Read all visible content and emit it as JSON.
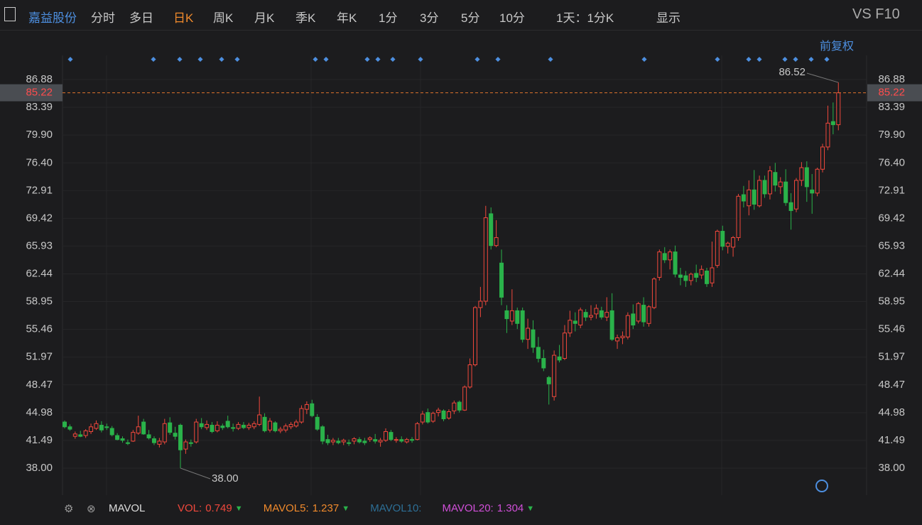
{
  "toolbar": {
    "stock_name": "嘉益股份",
    "periods": [
      "分时",
      "多日",
      "日K",
      "周K",
      "月K",
      "季K",
      "年K",
      "1分",
      "3分",
      "5分",
      "10分"
    ],
    "range_select": "1天：1分K",
    "display": "显示",
    "tools": "VS F10"
  },
  "adjust": "前复权",
  "chart_data": {
    "type": "candlestick",
    "up_color": "#f0483c",
    "down_color": "#2ab24a",
    "ylim": [
      34.6,
      89.92
    ],
    "yticks": [
      {
        "value": 38,
        "label": "38.00"
      },
      41.49,
      44.98,
      48.47,
      51.97,
      55.46,
      58.95,
      62.44,
      65.93,
      69.42,
      72.91,
      {
        "value": 76.4,
        "label": "76.40"
      },
      {
        "value": 79.9,
        "label": "79.90"
      },
      83.39,
      86.88
    ],
    "last_price": 85.22,
    "annotations": {
      "high": 86.52,
      "low": {
        "value": 38,
        "label": "38.00"
      }
    },
    "values": [
      [
        43.8,
        44.0,
        43.0,
        43.2
      ],
      [
        43.2,
        43.5,
        42.7,
        42.9
      ],
      [
        42.0,
        42.6,
        41.7,
        42.3
      ],
      [
        42.2,
        42.7,
        41.9,
        42.0
      ],
      [
        42.1,
        42.9,
        41.8,
        42.7
      ],
      [
        42.6,
        43.6,
        42.3,
        43.2
      ],
      [
        43.0,
        44.0,
        42.8,
        43.6
      ],
      [
        43.4,
        43.9,
        42.5,
        42.8
      ],
      [
        43.2,
        43.6,
        42.8,
        43.1
      ],
      [
        43.0,
        43.3,
        42.0,
        42.2
      ],
      [
        42.1,
        42.4,
        41.5,
        41.6
      ],
      [
        41.7,
        42.0,
        41.2,
        41.5
      ],
      [
        41.2,
        41.6,
        40.9,
        41.1
      ],
      [
        41.4,
        42.8,
        41.3,
        42.5
      ],
      [
        42.4,
        44.6,
        42.2,
        43.2
      ],
      [
        43.8,
        44.2,
        42.2,
        42.3
      ],
      [
        42.2,
        42.8,
        41.6,
        41.8
      ],
      [
        41.7,
        42.0,
        40.9,
        41.2
      ],
      [
        41.0,
        41.8,
        40.6,
        41.4
      ],
      [
        41.3,
        44.2,
        41.0,
        43.6
      ],
      [
        43.7,
        44.4,
        42.2,
        42.5
      ],
      [
        42.4,
        43.2,
        41.6,
        42.0
      ],
      [
        43.4,
        43.6,
        38.0,
        40.3
      ],
      [
        40.4,
        41.6,
        39.8,
        41.3
      ],
      [
        41.2,
        41.6,
        40.7,
        41.1
      ],
      [
        41.3,
        44.2,
        41.1,
        43.8
      ],
      [
        43.6,
        44.3,
        42.9,
        43.2
      ],
      [
        43.1,
        44.0,
        42.8,
        43.5
      ],
      [
        43.4,
        43.8,
        42.4,
        42.6
      ],
      [
        42.7,
        43.9,
        42.5,
        43.4
      ],
      [
        43.3,
        43.6,
        42.8,
        43.1
      ],
      [
        43.9,
        44.6,
        43.0,
        43.2
      ],
      [
        43.1,
        43.6,
        42.6,
        43.0
      ],
      [
        43.0,
        43.8,
        42.8,
        43.5
      ],
      [
        43.4,
        43.8,
        42.9,
        43.1
      ],
      [
        43.1,
        43.7,
        42.8,
        43.4
      ],
      [
        43.2,
        43.9,
        42.9,
        43.6
      ],
      [
        43.5,
        47.0,
        43.3,
        44.7
      ],
      [
        44.4,
        44.9,
        42.5,
        42.7
      ],
      [
        42.8,
        44.3,
        42.5,
        43.9
      ],
      [
        43.7,
        43.9,
        42.5,
        42.7
      ],
      [
        42.7,
        43.2,
        42.4,
        42.9
      ],
      [
        42.8,
        43.6,
        42.5,
        43.3
      ],
      [
        43.2,
        43.8,
        42.9,
        43.5
      ],
      [
        43.3,
        44.1,
        43.1,
        43.8
      ],
      [
        43.8,
        45.9,
        43.6,
        45.5
      ],
      [
        45.4,
        46.4,
        44.8,
        46.0
      ],
      [
        46.1,
        46.6,
        44.4,
        44.6
      ],
      [
        44.4,
        44.8,
        42.7,
        42.9
      ],
      [
        43.2,
        43.4,
        41.0,
        41.4
      ],
      [
        41.6,
        42.2,
        40.9,
        41.2
      ],
      [
        41.3,
        41.8,
        40.9,
        41.5
      ],
      [
        41.4,
        41.8,
        41.0,
        41.2
      ],
      [
        41.3,
        41.7,
        40.9,
        41.5
      ],
      [
        41.2,
        41.6,
        40.8,
        41.1
      ],
      [
        41.4,
        41.9,
        41.0,
        41.7
      ],
      [
        41.6,
        41.9,
        41.1,
        41.3
      ],
      [
        41.4,
        41.8,
        40.9,
        41.2
      ],
      [
        41.6,
        42.0,
        41.3,
        41.8
      ],
      [
        41.6,
        42.3,
        41.1,
        41.4
      ],
      [
        41.3,
        41.8,
        40.7,
        41.5
      ],
      [
        41.5,
        43.0,
        41.3,
        42.6
      ],
      [
        42.5,
        42.8,
        41.4,
        41.6
      ],
      [
        41.5,
        41.9,
        41.2,
        41.6
      ],
      [
        41.6,
        42.0,
        41.2,
        41.4
      ],
      [
        41.3,
        41.8,
        41.1,
        41.6
      ],
      [
        41.6,
        41.9,
        41.2,
        41.5
      ],
      [
        41.6,
        43.8,
        41.5,
        43.6
      ],
      [
        43.8,
        45.2,
        43.5,
        44.8
      ],
      [
        45.0,
        45.5,
        43.6,
        43.8
      ],
      [
        43.9,
        45.1,
        43.7,
        44.9
      ],
      [
        45.0,
        45.6,
        44.5,
        45.3
      ],
      [
        45.2,
        45.4,
        43.9,
        44.2
      ],
      [
        44.3,
        45.4,
        44.1,
        45.1
      ],
      [
        45.2,
        46.5,
        44.8,
        46.2
      ],
      [
        46.3,
        46.5,
        45.0,
        45.3
      ],
      [
        45.3,
        48.4,
        45.2,
        48.2
      ],
      [
        48.2,
        51.8,
        48.0,
        51.0
      ],
      [
        51.0,
        58.4,
        50.8,
        58.2
      ],
      [
        58.2,
        60.8,
        57.0,
        59.0
      ],
      [
        59.0,
        71.0,
        58.5,
        69.5
      ],
      [
        70.0,
        70.8,
        65.5,
        66.0
      ],
      [
        66.0,
        69.2,
        65.8,
        67.0
      ],
      [
        63.8,
        65.5,
        58.5,
        59.5
      ],
      [
        57.8,
        58.5,
        55.0,
        56.8
      ],
      [
        56.5,
        60.5,
        56.0,
        57.8
      ],
      [
        57.8,
        58.2,
        55.5,
        56.2
      ],
      [
        57.8,
        58.2,
        53.8,
        54.2
      ],
      [
        54.2,
        56.8,
        53.0,
        55.6
      ],
      [
        55.4,
        56.6,
        52.5,
        53.2
      ],
      [
        53.2,
        54.5,
        51.3,
        51.8
      ],
      [
        51.8,
        52.9,
        50.2,
        50.6
      ],
      [
        49.4,
        49.6,
        46.0,
        48.6
      ],
      [
        47.0,
        52.8,
        46.5,
        52.2
      ],
      [
        52.0,
        53.5,
        51.3,
        51.6
      ],
      [
        51.8,
        56.0,
        51.6,
        55.0
      ],
      [
        55.0,
        57.8,
        54.5,
        56.6
      ],
      [
        56.5,
        57.6,
        55.2,
        56.2
      ],
      [
        56.0,
        58.2,
        55.6,
        57.9
      ],
      [
        57.6,
        58.0,
        56.5,
        57.0
      ],
      [
        57.0,
        58.5,
        56.6,
        57.2
      ],
      [
        57.4,
        58.6,
        56.8,
        58.1
      ],
      [
        57.8,
        58.3,
        56.7,
        57.0
      ],
      [
        57.0,
        59.5,
        56.5,
        57.6
      ],
      [
        57.8,
        60.0,
        54.0,
        54.2
      ],
      [
        54.0,
        54.8,
        53.0,
        54.4
      ],
      [
        54.4,
        55.2,
        53.6,
        54.6
      ],
      [
        54.5,
        57.6,
        54.2,
        57.2
      ],
      [
        57.4,
        58.6,
        55.5,
        56.0
      ],
      [
        56.5,
        58.9,
        56.2,
        58.7
      ],
      [
        58.5,
        59.5,
        55.8,
        56.4
      ],
      [
        56.2,
        58.5,
        55.8,
        58.3
      ],
      [
        58.2,
        62.0,
        58.0,
        61.8
      ],
      [
        62.0,
        65.5,
        61.6,
        65.2
      ],
      [
        65.0,
        65.8,
        63.8,
        64.2
      ],
      [
        64.2,
        65.5,
        63.0,
        65.2
      ],
      [
        65.2,
        66.0,
        62.0,
        62.4
      ],
      [
        62.3,
        63.2,
        61.0,
        62.0
      ],
      [
        62.2,
        62.8,
        60.8,
        61.6
      ],
      [
        61.6,
        62.6,
        61.0,
        62.4
      ],
      [
        62.5,
        63.6,
        61.4,
        62.0
      ],
      [
        62.3,
        63.5,
        61.8,
        63.0
      ],
      [
        62.8,
        63.2,
        60.8,
        61.2
      ],
      [
        61.3,
        66.5,
        60.8,
        63.2
      ],
      [
        63.5,
        68.0,
        63.2,
        67.8
      ],
      [
        67.8,
        68.5,
        65.4,
        65.9
      ],
      [
        65.9,
        66.5,
        65.0,
        66.3
      ],
      [
        65.8,
        67.2,
        64.6,
        67.0
      ],
      [
        67.0,
        72.5,
        66.6,
        72.2
      ],
      [
        72.4,
        73.5,
        70.8,
        71.6
      ],
      [
        71.0,
        74.2,
        69.8,
        73.0
      ],
      [
        73.0,
        75.5,
        70.5,
        71.2
      ],
      [
        71.0,
        74.8,
        70.8,
        74.2
      ],
      [
        74.2,
        74.8,
        72.0,
        72.5
      ],
      [
        72.5,
        76.0,
        71.8,
        75.4
      ],
      [
        75.2,
        76.4,
        72.8,
        73.6
      ],
      [
        73.4,
        74.6,
        72.5,
        74.0
      ],
      [
        74.0,
        75.6,
        71.0,
        71.4
      ],
      [
        71.4,
        72.6,
        68.0,
        70.4
      ],
      [
        70.6,
        74.5,
        70.2,
        74.2
      ],
      [
        74.2,
        76.5,
        73.5,
        75.8
      ],
      [
        75.8,
        76.6,
        71.5,
        73.4
      ],
      [
        73.0,
        75.0,
        70.0,
        72.6
      ],
      [
        72.6,
        75.8,
        72.2,
        75.6
      ],
      [
        75.6,
        78.8,
        75.2,
        78.4
      ],
      [
        78.4,
        83.6,
        78.0,
        81.4
      ],
      [
        81.6,
        84.0,
        80.0,
        81.2
      ],
      [
        81.2,
        86.52,
        80.5,
        85.22
      ]
    ]
  },
  "indicator": {
    "name": "MAVOL",
    "items": [
      {
        "name": "VOL:",
        "value": 0.749,
        "color": "#f0483c"
      },
      {
        "name": "MAVOL5:",
        "value": 1.237,
        "color": "#f08a2c"
      },
      {
        "name": "MAVOL10:",
        "color": "#2d6f96"
      },
      {
        "name": "MAVOL20:",
        "value": 1.304,
        "color": "#d04fd8"
      }
    ]
  }
}
